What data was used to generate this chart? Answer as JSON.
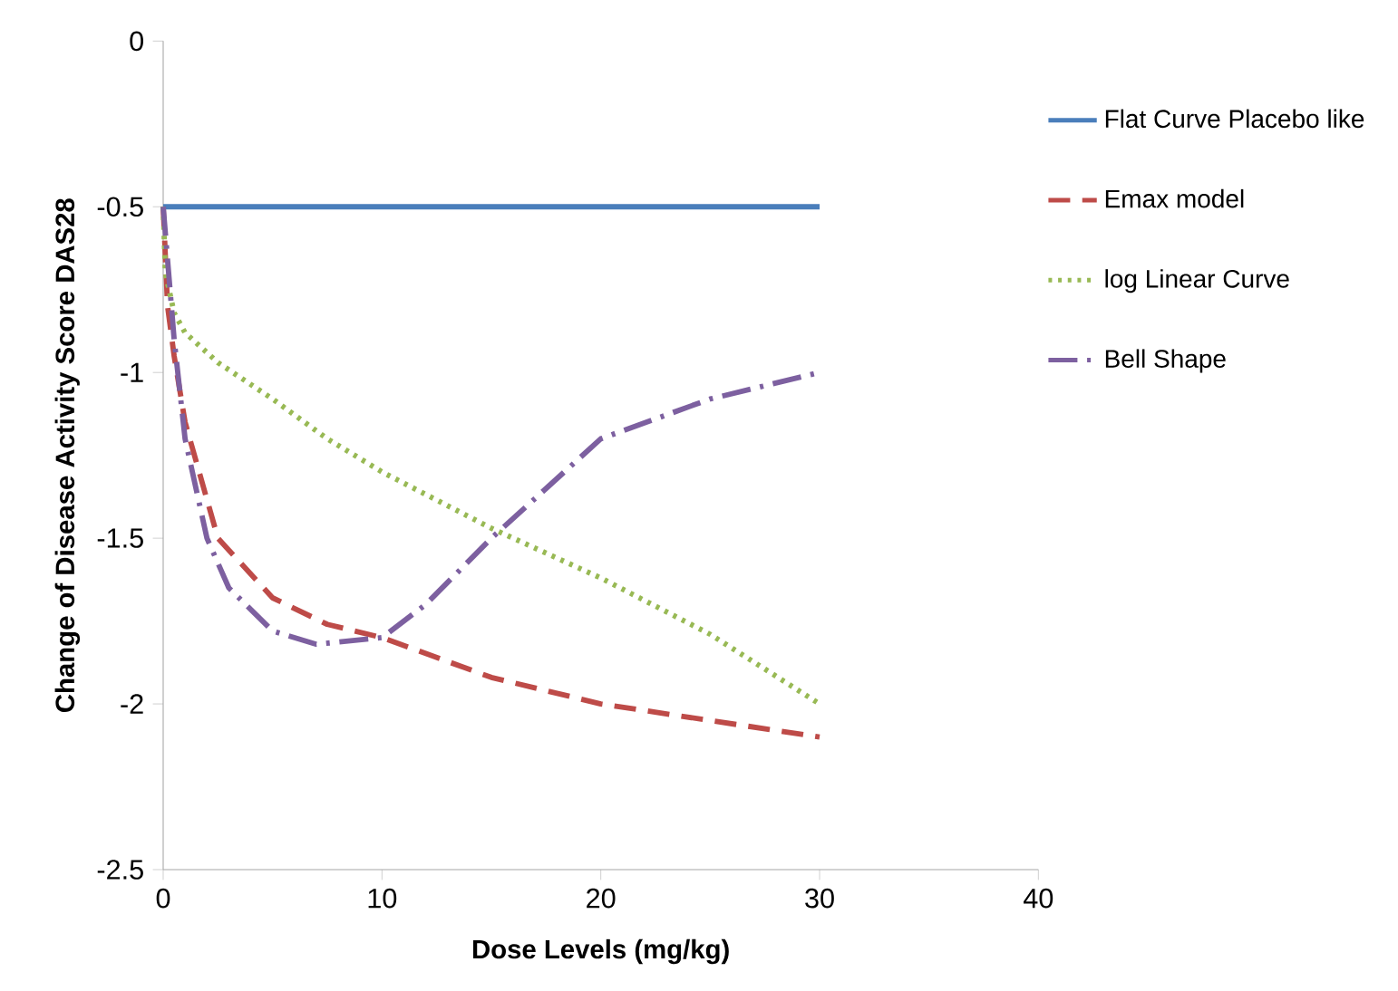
{
  "chart_data": {
    "type": "line",
    "xlabel": "Dose Levels (mg/kg)",
    "ylabel": "Change of Disease Activity Score DAS28",
    "xlim": [
      0,
      40
    ],
    "ylim": [
      -2.5,
      0
    ],
    "xticks": [
      0,
      10,
      20,
      30,
      40
    ],
    "yticks": [
      -2.5,
      -2,
      -1.5,
      -1,
      -0.5,
      0
    ],
    "legend": "right",
    "grid": false,
    "marker": "none",
    "series": [
      {
        "name": "Flat Curve Placebo like",
        "color": "#4a7ebb",
        "line_style": "solid",
        "x": [
          0,
          30
        ],
        "values": [
          -0.5,
          -0.5
        ]
      },
      {
        "name": "Emax model",
        "color": "#be4b48",
        "line_style": "dashed",
        "x": [
          0,
          0.2,
          0.5,
          1,
          2.5,
          5,
          7.5,
          10,
          15,
          20,
          25,
          30
        ],
        "values": [
          -0.5,
          -0.8,
          -0.95,
          -1.15,
          -1.5,
          -1.68,
          -1.76,
          -1.8,
          -1.92,
          -2.0,
          -2.05,
          -2.1
        ]
      },
      {
        "name": "log Linear Curve",
        "color": "#98b954",
        "line_style": "dotted",
        "x": [
          0,
          0.1,
          0.5,
          1,
          2.5,
          5,
          7.5,
          10,
          15,
          20,
          25,
          30
        ],
        "values": [
          -0.5,
          -0.7,
          -0.82,
          -0.88,
          -0.97,
          -1.08,
          -1.2,
          -1.3,
          -1.47,
          -1.62,
          -1.79,
          -2.0
        ]
      },
      {
        "name": "Bell Shape",
        "color": "#7d60a0",
        "line_style": "dashdot",
        "x": [
          0,
          0.5,
          1,
          2,
          3,
          5,
          7,
          10,
          12,
          15,
          17.5,
          20,
          25,
          30
        ],
        "values": [
          -0.5,
          -0.9,
          -1.2,
          -1.5,
          -1.65,
          -1.78,
          -1.82,
          -1.8,
          -1.7,
          -1.5,
          -1.35,
          -1.2,
          -1.08,
          -1.0
        ]
      }
    ]
  }
}
